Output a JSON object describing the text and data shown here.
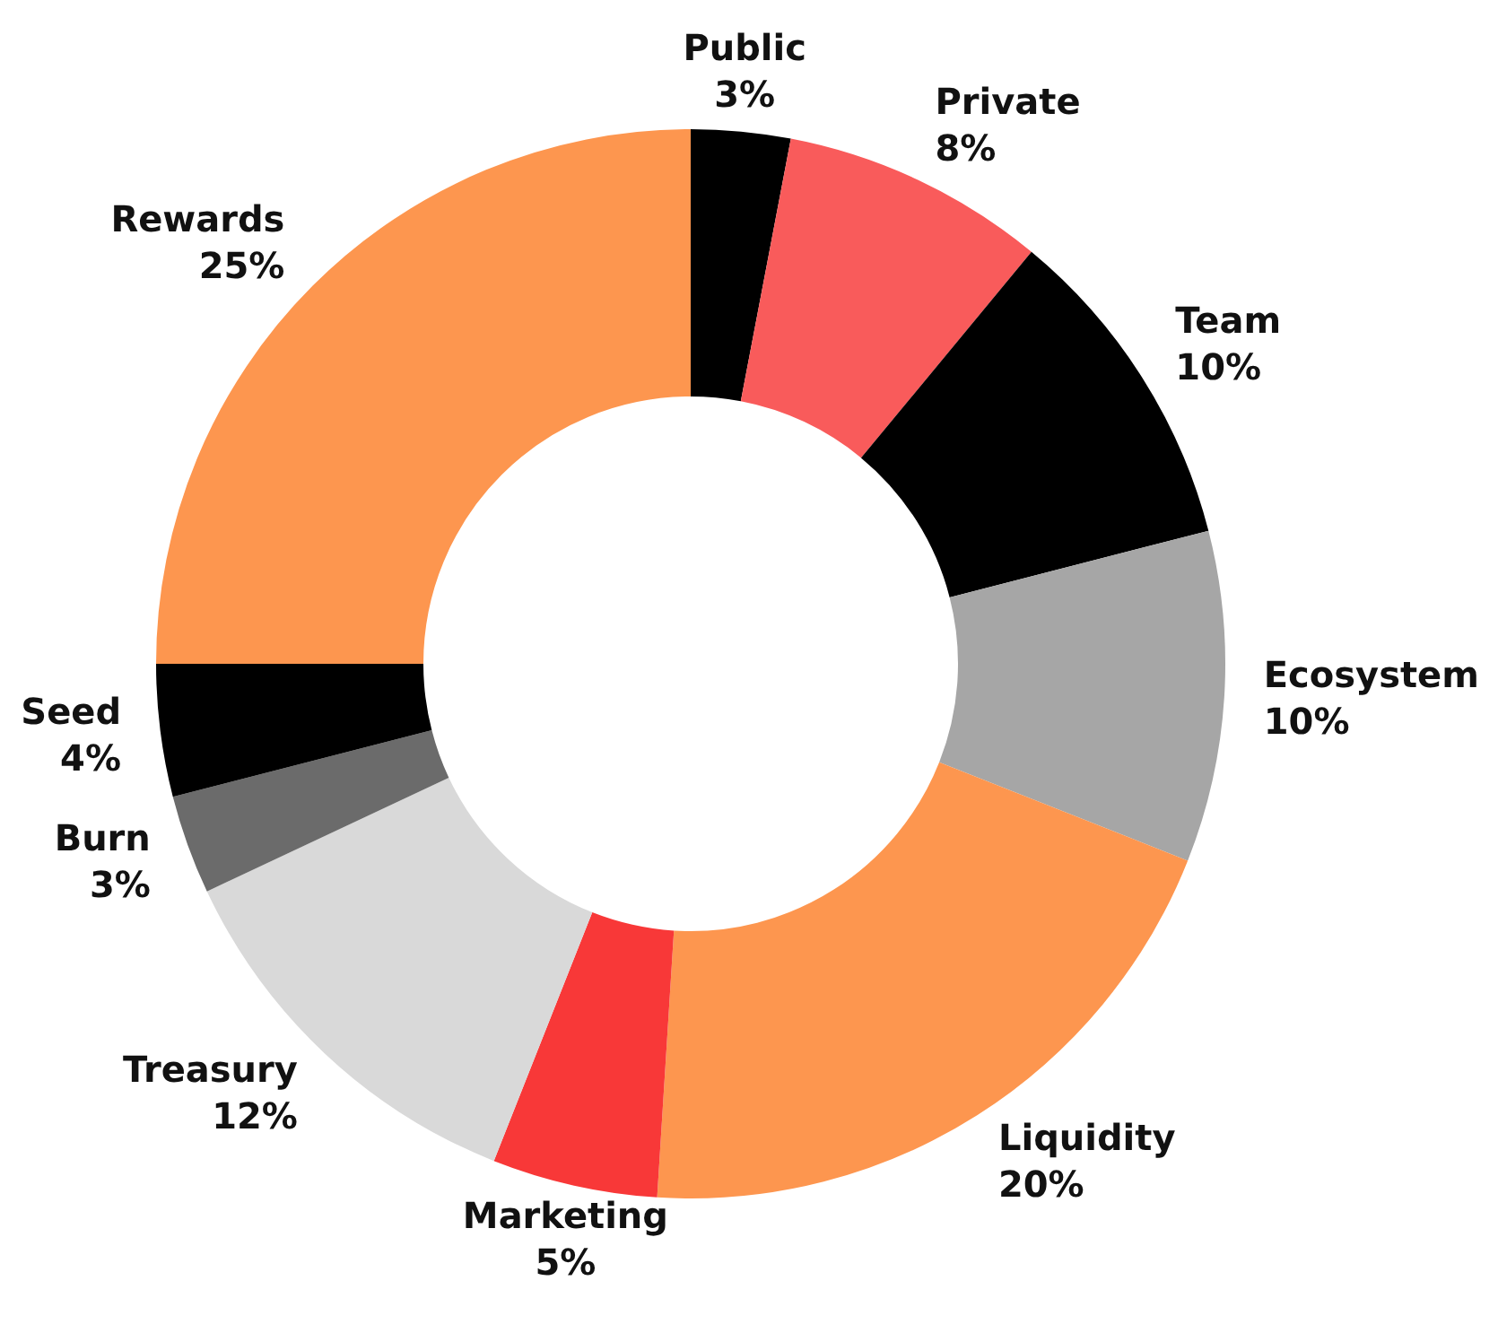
{
  "chart_data": {
    "type": "donut",
    "categories": [
      "Public",
      "Private",
      "Team",
      "Ecosystem",
      "Liquidity",
      "Marketing",
      "Treasury",
      "Burn",
      "Seed",
      "Rewards"
    ],
    "values": [
      3,
      8,
      10,
      10,
      20,
      5,
      12,
      3,
      4,
      25
    ],
    "value_labels": [
      "3%",
      "8%",
      "10%",
      "10%",
      "20%",
      "5%",
      "12%",
      "3%",
      "4%",
      "25%"
    ],
    "colors": [
      "#000000",
      "#f95b5b",
      "#000000",
      "#a6a6a6",
      "#fd964f",
      "#f83838",
      "#d9d9d9",
      "#6b6b6b",
      "#000000",
      "#fd964f"
    ],
    "legend": false
  }
}
